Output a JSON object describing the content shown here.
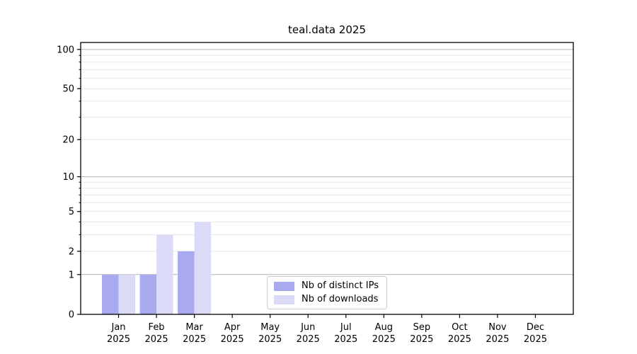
{
  "chart_data": {
    "type": "bar",
    "title": "teal.data 2025",
    "categories": [
      "Jan\n2025",
      "Feb\n2025",
      "Mar\n2025",
      "Apr\n2025",
      "May\n2025",
      "Jun\n2025",
      "Jul\n2025",
      "Aug\n2025",
      "Sep\n2025",
      "Oct\n2025",
      "Nov\n2025",
      "Dec\n2025"
    ],
    "series": [
      {
        "name": "Nb of distinct IPs",
        "color": "#a9a9f0",
        "values": [
          1,
          1,
          2,
          0,
          0,
          0,
          0,
          0,
          0,
          0,
          0,
          0
        ]
      },
      {
        "name": "Nb of downloads",
        "color": "#dbdbf8",
        "values": [
          1,
          3,
          4,
          0,
          0,
          0,
          0,
          0,
          0,
          0,
          0,
          0
        ]
      }
    ],
    "xlabel": "",
    "ylabel": "",
    "y_scale": "log1p",
    "ylim": [
      0,
      113
    ],
    "y_tick_labels": [
      0,
      1,
      2,
      5,
      10,
      20,
      50,
      100
    ],
    "y_major_grid": [
      1,
      10,
      100
    ],
    "y_minor_grid": [
      2,
      3,
      4,
      5,
      6,
      7,
      8,
      9,
      20,
      30,
      40,
      50,
      60,
      70,
      80,
      90
    ],
    "grid": "on",
    "legend_position": "lower center",
    "colors": {
      "grid_major": "#b2b2b2",
      "grid_minor": "#e8e8e8",
      "spine": "#000000",
      "tick_text": "#000000",
      "legend_border": "#cccccc",
      "background": "#ffffff"
    }
  }
}
